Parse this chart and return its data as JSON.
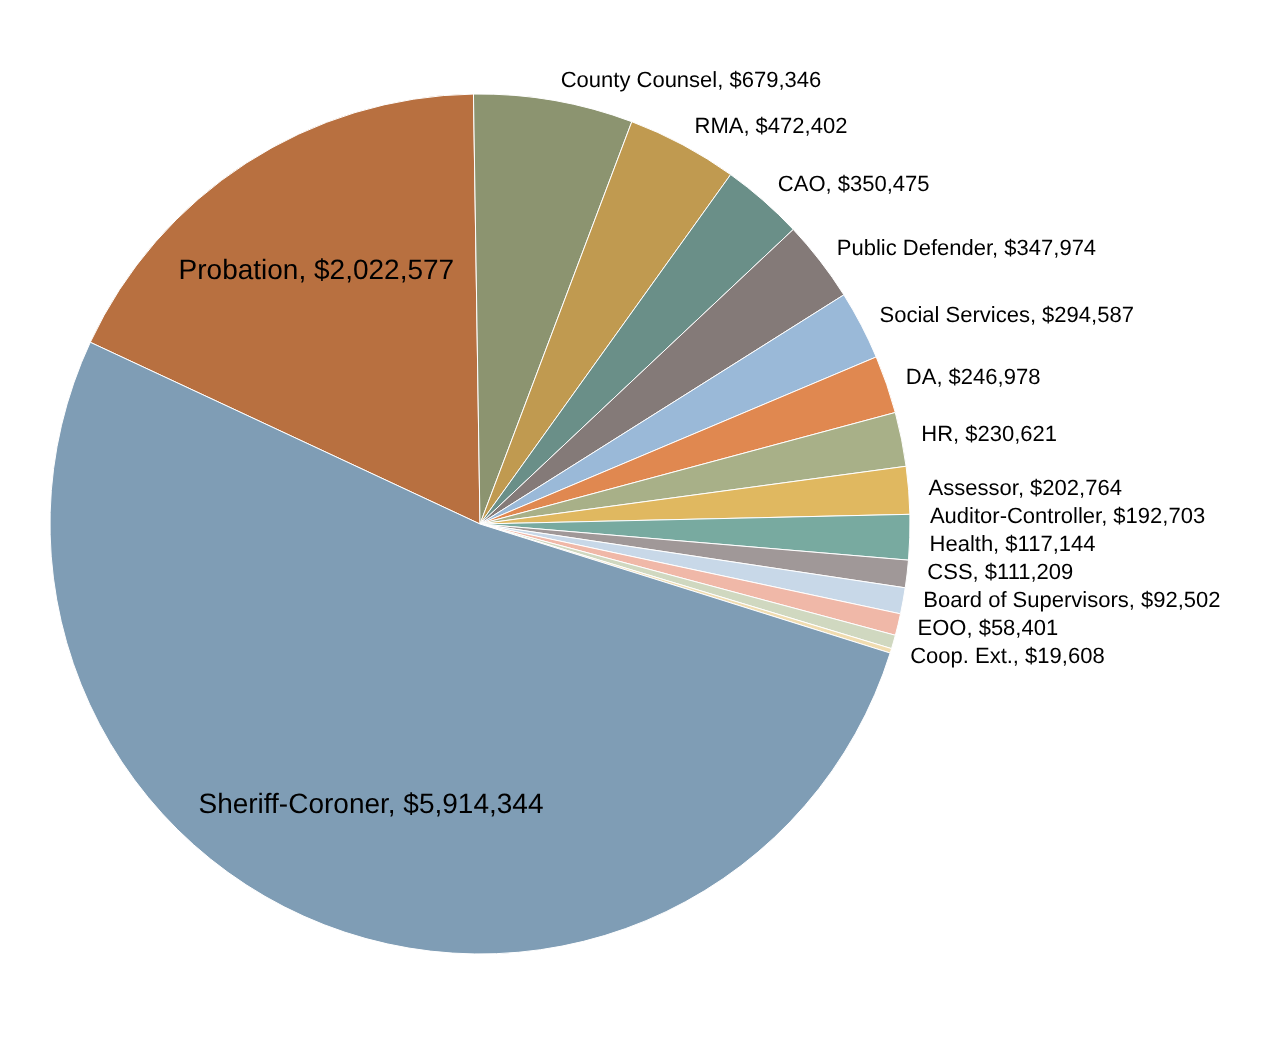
{
  "chart_data": {
    "type": "pie",
    "categories": [
      "Probation",
      "County Counsel",
      "RMA",
      "CAO",
      "Public Defender",
      "Social Services",
      "DA",
      "HR",
      "Assessor",
      "Auditor-Controller",
      "Health",
      "CSS",
      "Board of Supervisors",
      "EOO",
      "Coop. Ext.",
      "Sheriff-Coroner"
    ],
    "values": [
      2022577,
      679346,
      472402,
      350475,
      347974,
      294587,
      246978,
      230621,
      202764,
      192703,
      117144,
      111209,
      92502,
      58401,
      19608,
      5914344
    ],
    "value_labels": [
      "$2,022,577",
      "$679,346",
      "$472,402",
      "$350,475",
      "$347,974",
      "$294,587",
      "$246,978",
      "$230,621",
      "$202,764",
      "$192,703",
      "$117,144",
      "$111,209",
      "$92,502",
      "$58,401",
      "$19,608",
      "$5,914,344"
    ],
    "colors": [
      "#b87040",
      "#8c9470",
      "#c09a50",
      "#6a8f88",
      "#847a78",
      "#9ab9d8",
      "#e08850",
      "#a8b088",
      "#e0b860",
      "#78aaa0",
      "#a09898",
      "#c8d8e8",
      "#f0b8a8",
      "#d0d8c0",
      "#f0dcb0",
      "#7f9db5"
    ]
  }
}
